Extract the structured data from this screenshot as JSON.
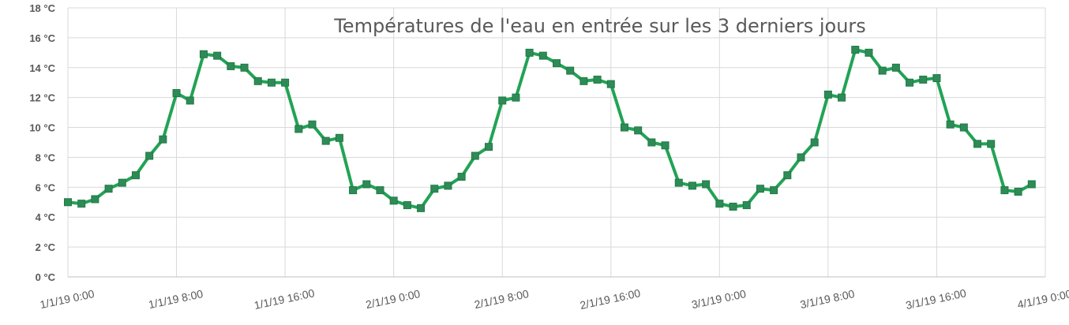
{
  "chart_data": {
    "type": "line",
    "title": "Températures de l'eau en entrée sur les 3 derniers jours",
    "xlabel": "",
    "ylabel": "",
    "ylim": [
      0,
      18
    ],
    "y_ticks": [
      "0 °C",
      "2 °C",
      "4 °C",
      "6 °C",
      "8 °C",
      "10 °C",
      "12 °C",
      "14 °C",
      "16 °C",
      "18 °C"
    ],
    "x_ticks": [
      "1/1/19 0:00",
      "1/1/19 8:00",
      "1/1/19 16:00",
      "2/1/19 0:00",
      "2/1/19 8:00",
      "2/1/19 16:00",
      "3/1/19 0:00",
      "3/1/19 8:00",
      "3/1/19 16:00",
      "4/1/19 0:00"
    ],
    "x_hours_start": 0,
    "x_hours_end": 72,
    "x_step_hours": 1,
    "grid": true,
    "legend": "none",
    "colors": {
      "line": "#22a355",
      "marker": "#2e8b57",
      "grid": "#d9d9d9",
      "text": "#595959"
    },
    "series": [
      {
        "values": [
          5.0,
          4.9,
          5.2,
          5.9,
          6.3,
          6.8,
          8.1,
          9.2,
          12.3,
          11.8,
          14.9,
          14.8,
          14.1,
          14.0,
          13.1,
          13.0,
          13.0,
          9.9,
          10.2,
          9.1,
          9.3,
          5.8,
          6.2,
          5.8,
          5.1,
          4.8,
          4.6,
          5.9,
          6.1,
          6.7,
          8.1,
          8.7,
          11.8,
          12.0,
          15.0,
          14.8,
          14.3,
          13.8,
          13.1,
          13.2,
          12.9,
          10.0,
          9.8,
          9.0,
          8.8,
          6.3,
          6.1,
          6.2,
          4.9,
          4.7,
          4.8,
          5.9,
          5.8,
          6.8,
          8.0,
          9.0,
          12.2,
          12.0,
          15.2,
          15.0,
          13.8,
          14.0,
          13.0,
          13.2,
          13.3,
          10.2,
          10.0,
          8.9,
          8.9,
          5.8,
          5.7,
          6.2
        ]
      }
    ]
  }
}
